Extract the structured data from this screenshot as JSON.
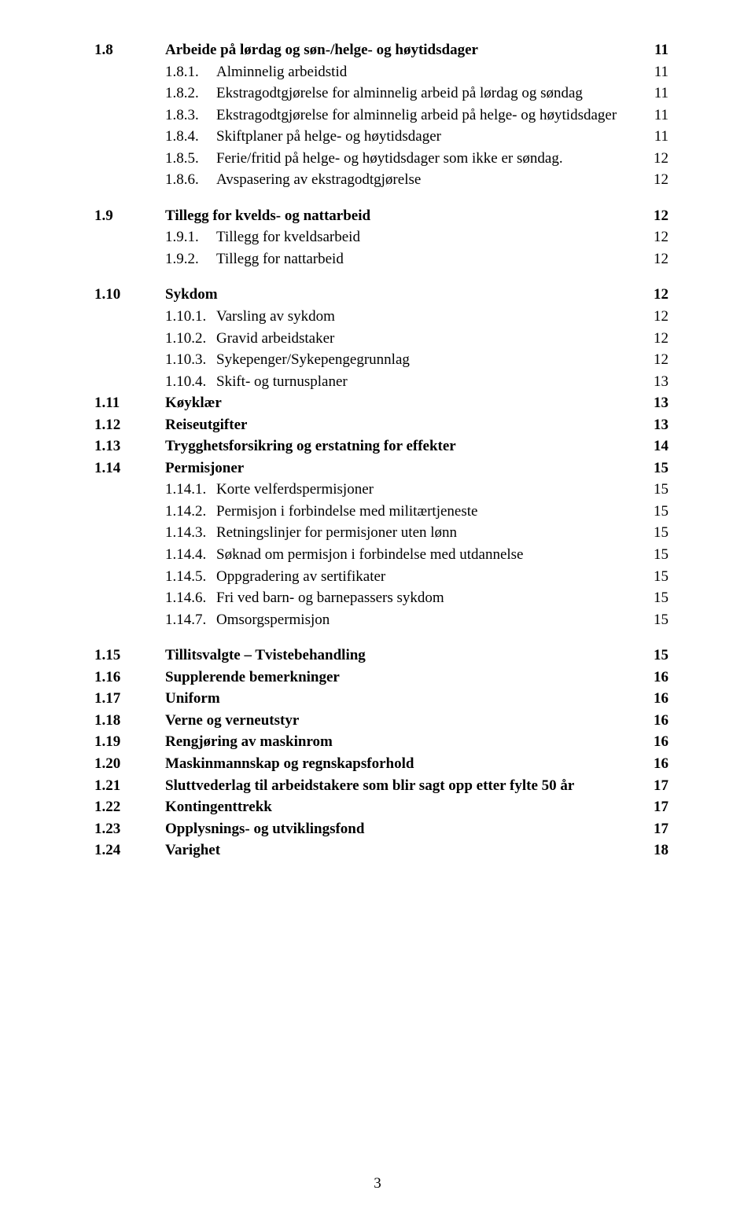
{
  "font": {
    "family": "Times New Roman",
    "base_size_pt": 14
  },
  "colors": {
    "text": "#000000",
    "background": "#ffffff"
  },
  "footer_page": "3",
  "toc": [
    {
      "type": "section",
      "num": "1.8",
      "label": "Arbeide på lørdag og søn-/helge- og høytidsdager",
      "page": "11"
    },
    {
      "type": "sub",
      "num": "1.8.1.",
      "label": "Alminnelig arbeidstid",
      "page": "11"
    },
    {
      "type": "sub",
      "num": "1.8.2.",
      "label": "Ekstragodtgjørelse for alminnelig arbeid på lørdag og søndag",
      "page": "11"
    },
    {
      "type": "sub",
      "num": "1.8.3.",
      "label": "Ekstragodtgjørelse for alminnelig arbeid på helge- og høytidsdager",
      "page": "11"
    },
    {
      "type": "sub",
      "num": "1.8.4.",
      "label": "Skiftplaner på helge- og høytidsdager",
      "page": "11"
    },
    {
      "type": "sub",
      "num": "1.8.5.",
      "label": "Ferie/fritid på helge- og høytidsdager som ikke er søndag.",
      "page": "12"
    },
    {
      "type": "sub",
      "num": "1.8.6.",
      "label": "Avspasering av ekstragodtgjørelse",
      "page": "12"
    },
    {
      "type": "gap"
    },
    {
      "type": "section",
      "num": "1.9",
      "label": "Tillegg for kvelds- og nattarbeid",
      "page": "12"
    },
    {
      "type": "sub",
      "num": "1.9.1.",
      "label": "Tillegg for kveldsarbeid",
      "page": "12"
    },
    {
      "type": "sub",
      "num": "1.9.2.",
      "label": "Tillegg for nattarbeid",
      "page": "12"
    },
    {
      "type": "gap"
    },
    {
      "type": "section",
      "num": "1.10",
      "label": "Sykdom",
      "page": "12"
    },
    {
      "type": "sub",
      "num": "1.10.1.",
      "label": "Varsling av sykdom",
      "page": "12"
    },
    {
      "type": "sub",
      "num": "1.10.2.",
      "label": "Gravid arbeidstaker",
      "page": "12"
    },
    {
      "type": "sub",
      "num": "1.10.3.",
      "label": "Sykepenger/Sykepengegrunnlag",
      "page": "12"
    },
    {
      "type": "sub",
      "num": "1.10.4.",
      "label": "Skift- og turnusplaner",
      "page": "13"
    },
    {
      "type": "section",
      "num": "1.11",
      "label": "Køyklær",
      "page": "13"
    },
    {
      "type": "section",
      "num": "1.12",
      "label": "Reiseutgifter",
      "page": "13"
    },
    {
      "type": "section",
      "num": "1.13",
      "label": "Trygghetsforsikring og erstatning for effekter",
      "page": "14"
    },
    {
      "type": "section",
      "num": "1.14",
      "label": "Permisjoner",
      "page": "15"
    },
    {
      "type": "sub",
      "num": "1.14.1.",
      "label": "Korte velferdspermisjoner",
      "page": "15"
    },
    {
      "type": "sub",
      "num": "1.14.2.",
      "label": "Permisjon i forbindelse med militærtjeneste",
      "page": "15"
    },
    {
      "type": "sub",
      "num": "1.14.3.",
      "label": "Retningslinjer for permisjoner uten lønn",
      "page": "15"
    },
    {
      "type": "sub",
      "num": "1.14.4.",
      "label": "Søknad om permisjon i forbindelse med utdannelse",
      "page": "15"
    },
    {
      "type": "sub",
      "num": "1.14.5.",
      "label": "Oppgradering av sertifikater",
      "page": "15"
    },
    {
      "type": "sub",
      "num": "1.14.6.",
      "label": "Fri ved barn- og barnepassers sykdom",
      "page": "15"
    },
    {
      "type": "sub",
      "num": "1.14.7.",
      "label": "Omsorgspermisjon",
      "page": "15"
    },
    {
      "type": "gap"
    },
    {
      "type": "section",
      "num": "1.15",
      "label": "Tillitsvalgte – Tvistebehandling",
      "page": "15"
    },
    {
      "type": "section",
      "num": "1.16",
      "label": "Supplerende bemerkninger",
      "page": "16"
    },
    {
      "type": "section",
      "num": "1.17",
      "label": "Uniform",
      "page": "16"
    },
    {
      "type": "section",
      "num": "1.18",
      "label": "Verne og verneutstyr",
      "page": "16"
    },
    {
      "type": "section",
      "num": "1.19",
      "label": "Rengjøring av maskinrom",
      "page": "16"
    },
    {
      "type": "section",
      "num": "1.20",
      "label": "Maskinmannskap og regnskapsforhold",
      "page": "16"
    },
    {
      "type": "section",
      "num": "1.21",
      "label": "Sluttvederlag til arbeidstakere som blir sagt opp etter fylte 50 år",
      "page": "17"
    },
    {
      "type": "section",
      "num": "1.22",
      "label": "Kontingenttrekk",
      "page": "17"
    },
    {
      "type": "section",
      "num": "1.23",
      "label": "Opplysnings- og utviklingsfond",
      "page": "17"
    },
    {
      "type": "section",
      "num": "1.24",
      "label": "Varighet",
      "page": "18"
    }
  ]
}
